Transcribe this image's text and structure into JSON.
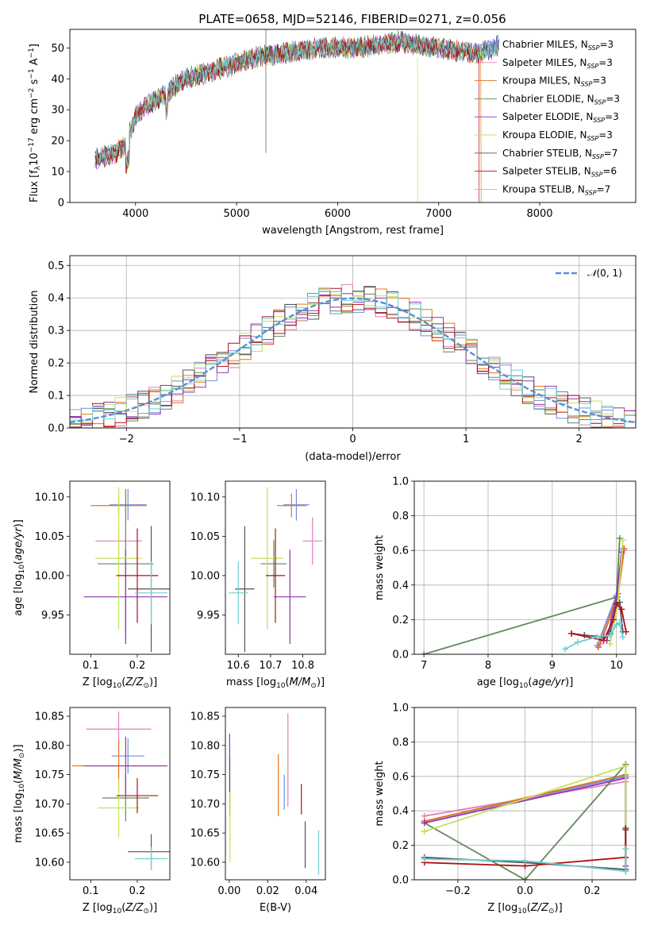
{
  "title": "PLATE=0658, MJD=52146, FIBERID=0271, z=0.056",
  "colors": {
    "Chabrier MILES": "#6f8fd8",
    "Salpeter MILES": "#e37dbd",
    "Kroupa MILES": "#e8731c",
    "Chabrier ELODIE": "#5f8a5a",
    "Salpeter ELODIE": "#8e36ae",
    "Kroupa ELODIE": "#c4e25a",
    "Chabrier STELIB": "#555555",
    "Salpeter STELIB": "#b01015",
    "Kroupa STELIB": "#6fcfd2"
  },
  "chart_data": [
    {
      "type": "line",
      "panel": "spectrum",
      "xlabel": "wavelength [Angstrom, rest frame]",
      "ylabel": "Flux [f_λ 10^-17 erg cm^-2 s^-1 A^-1]",
      "xlim": [
        3350,
        8950
      ],
      "ylim": [
        0,
        56
      ],
      "xticks": [
        4000,
        5000,
        6000,
        7000,
        8000
      ],
      "yticks": [
        0,
        10,
        20,
        30,
        40,
        50
      ],
      "legend": "right",
      "legend_entries": [
        "Chabrier MILES, N_SSP=3",
        "Salpeter MILES, N_SSP=3",
        "Kroupa MILES, N_SSP=3",
        "Chabrier ELODIE, N_SSP=3",
        "Salpeter ELODIE, N_SSP=3",
        "Kroupa ELODIE, N_SSP=3",
        "Chabrier STELIB, N_SSP=7",
        "Salpeter STELIB, N_SSP=6",
        "Kroupa STELIB, N_SSP=7"
      ],
      "continuum": {
        "x": [
          3600,
          3700,
          3800,
          3900,
          4000,
          4100,
          4200,
          4300,
          4400,
          4500,
          4600,
          4800,
          5000,
          5200,
          5400,
          5600,
          5800,
          6000,
          6200,
          6400,
          6600,
          6800,
          7000,
          7200,
          7400,
          7600,
          7800
        ],
        "y": [
          14,
          15,
          16,
          19,
          28,
          31,
          33,
          35,
          38,
          40,
          41,
          43,
          45,
          47,
          48,
          49,
          50,
          50,
          50,
          51,
          52,
          51,
          50,
          49,
          48,
          51,
          52
        ]
      }
    },
    {
      "type": "bar",
      "panel": "residual-histogram",
      "xlabel": "(data-model)/error",
      "ylabel": "Normed distribution",
      "xlim": [
        -2.5,
        2.5
      ],
      "ylim": [
        0,
        0.53
      ],
      "xticks": [
        -2,
        -1,
        0,
        1,
        2
      ],
      "yticks": [
        0.0,
        0.1,
        0.2,
        0.3,
        0.4,
        0.5
      ],
      "grid": true,
      "legend": "top-right",
      "reference_series": "N(0,1)",
      "bin_width": 0.1
    },
    {
      "type": "scatter",
      "panel": "age-vs-Z",
      "xlabel": "Z [log10(Z/Z_sun)]",
      "ylabel": "age [log10(age/yr)]",
      "xlim": [
        0.055,
        0.27
      ],
      "ylim": [
        9.9,
        10.12
      ],
      "xticks": [
        0.1,
        0.2
      ],
      "yticks": [
        9.95,
        10.0,
        10.05,
        10.1
      ],
      "points": [
        {
          "series": "Chabrier MILES",
          "x": 0.18,
          "y": 10.09,
          "xerr": 0.04,
          "yerr": 0.02
        },
        {
          "series": "Salpeter MILES",
          "x": 0.16,
          "y": 10.044,
          "xerr": 0.05,
          "yerr": 0.02
        },
        {
          "series": "Kroupa MILES",
          "x": 0.16,
          "y": 10.089,
          "xerr": 0.06,
          "yerr": 0.015
        },
        {
          "series": "Chabrier ELODIE",
          "x": 0.175,
          "y": 10.015,
          "xerr": 0.06,
          "yerr": 0.095
        },
        {
          "series": "Salpeter ELODIE",
          "x": 0.175,
          "y": 9.973,
          "xerr": 0.09,
          "yerr": 0.06
        },
        {
          "series": "Kroupa ELODIE",
          "x": 0.16,
          "y": 10.022,
          "xerr": 0.05,
          "yerr": 0.09
        },
        {
          "series": "Chabrier STELIB",
          "x": 0.23,
          "y": 9.983,
          "xerr": 0.05,
          "yerr": 0.08
        },
        {
          "series": "Salpeter STELIB",
          "x": 0.2,
          "y": 10.0,
          "xerr": 0.045,
          "yerr": 0.06
        },
        {
          "series": "Kroupa STELIB",
          "x": 0.23,
          "y": 9.978,
          "xerr": 0.035,
          "yerr": 0.04
        }
      ]
    },
    {
      "type": "scatter",
      "panel": "age-vs-mass",
      "xlabel": "mass [log10(M/M_sun)]",
      "ylabel": "",
      "xlim": [
        10.56,
        10.87
      ],
      "ylim": [
        9.9,
        10.12
      ],
      "xticks": [
        10.6,
        10.7,
        10.8
      ],
      "yticks": [
        9.95,
        10.0,
        10.05,
        10.1
      ],
      "points": [
        {
          "series": "Chabrier MILES",
          "x": 10.78,
          "y": 10.09,
          "xerr": 0.04,
          "yerr": 0.02
        },
        {
          "series": "Salpeter MILES",
          "x": 10.83,
          "y": 10.044,
          "xerr": 0.03,
          "yerr": 0.03
        },
        {
          "series": "Kroupa MILES",
          "x": 10.765,
          "y": 10.089,
          "xerr": 0.045,
          "yerr": 0.015
        },
        {
          "series": "Chabrier ELODIE",
          "x": 10.71,
          "y": 10.015,
          "xerr": 0.04,
          "yerr": 0.03
        },
        {
          "series": "Salpeter ELODIE",
          "x": 10.76,
          "y": 9.973,
          "xerr": 0.05,
          "yerr": 0.06
        },
        {
          "series": "Kroupa ELODIE",
          "x": 10.69,
          "y": 10.022,
          "xerr": 0.05,
          "yerr": 0.09
        },
        {
          "series": "Chabrier STELIB",
          "x": 10.62,
          "y": 9.983,
          "xerr": 0.03,
          "yerr": 0.08
        },
        {
          "series": "Salpeter STELIB",
          "x": 10.715,
          "y": 10.0,
          "xerr": 0.03,
          "yerr": 0.06
        },
        {
          "series": "Kroupa STELIB",
          "x": 10.6,
          "y": 9.978,
          "xerr": 0.03,
          "yerr": 0.04
        }
      ]
    },
    {
      "type": "line",
      "panel": "mass-weight-vs-age",
      "xlabel": "age [log10(age/yr)]",
      "ylabel": "mass weight",
      "xlim": [
        6.85,
        10.3
      ],
      "ylim": [
        0,
        1
      ],
      "xticks": [
        7,
        8,
        9,
        10
      ],
      "yticks": [
        0.0,
        0.2,
        0.4,
        0.6,
        0.8,
        1.0
      ],
      "grid": true,
      "series": [
        {
          "name": "Chabrier MILES",
          "x": [
            9.7,
            10.0,
            10.1
          ],
          "y": [
            0.05,
            0.34,
            0.61
          ]
        },
        {
          "name": "Salpeter MILES",
          "x": [
            9.75,
            10.02,
            10.12
          ],
          "y": [
            0.06,
            0.33,
            0.6
          ]
        },
        {
          "name": "Kroupa MILES",
          "x": [
            9.72,
            10.03,
            10.12
          ],
          "y": [
            0.04,
            0.35,
            0.61
          ]
        },
        {
          "name": "Chabrier ELODIE",
          "x": [
            7.0,
            10.0,
            10.05
          ],
          "y": [
            0.0,
            0.33,
            0.67
          ]
        },
        {
          "name": "Salpeter ELODIE",
          "x": [
            9.85,
            10.0,
            10.08
          ],
          "y": [
            0.08,
            0.33,
            0.59
          ]
        },
        {
          "name": "Kroupa ELODIE",
          "x": [
            9.9,
            10.02,
            10.1
          ],
          "y": [
            0.06,
            0.28,
            0.66
          ]
        },
        {
          "name": "Chabrier STELIB",
          "x": [
            9.3,
            9.5,
            9.8,
            9.9,
            10.0,
            10.05,
            10.1
          ],
          "y": [
            0.12,
            0.11,
            0.1,
            0.12,
            0.29,
            0.3,
            0.13
          ]
        },
        {
          "name": "Salpeter STELIB",
          "x": [
            9.3,
            9.8,
            9.95,
            10.0,
            10.08,
            10.15
          ],
          "y": [
            0.12,
            0.08,
            0.2,
            0.29,
            0.26,
            0.13
          ]
        },
        {
          "name": "Kroupa STELIB",
          "x": [
            9.2,
            9.4,
            9.7,
            9.9,
            10.0,
            10.05,
            10.1
          ],
          "y": [
            0.03,
            0.07,
            0.1,
            0.11,
            0.17,
            0.18,
            0.1
          ]
        }
      ]
    },
    {
      "type": "scatter",
      "panel": "mass-vs-Z",
      "xlabel": "Z [log10(Z/Z_sun)]",
      "ylabel": "mass [log10(M/M_sun)]",
      "xlim": [
        0.055,
        0.27
      ],
      "ylim": [
        10.57,
        10.865
      ],
      "xticks": [
        0.1,
        0.2
      ],
      "yticks": [
        10.6,
        10.65,
        10.7,
        10.75,
        10.8,
        10.85
      ],
      "points": [
        {
          "series": "Chabrier MILES",
          "x": 0.18,
          "y": 10.782,
          "xerr": 0.035,
          "yerr": 0.03
        },
        {
          "series": "Salpeter MILES",
          "x": 0.16,
          "y": 10.828,
          "xerr": 0.07,
          "yerr": 0.03
        },
        {
          "series": "Kroupa MILES",
          "x": 0.16,
          "y": 10.765,
          "xerr": 0.1,
          "yerr": 0.045
        },
        {
          "series": "Chabrier ELODIE",
          "x": 0.175,
          "y": 10.71,
          "xerr": 0.05,
          "yerr": 0.04
        },
        {
          "series": "Salpeter ELODIE",
          "x": 0.175,
          "y": 10.765,
          "xerr": 0.09,
          "yerr": 0.05
        },
        {
          "series": "Kroupa ELODIE",
          "x": 0.16,
          "y": 10.693,
          "xerr": 0.045,
          "yerr": 0.05
        },
        {
          "series": "Chabrier STELIB",
          "x": 0.23,
          "y": 10.618,
          "xerr": 0.05,
          "yerr": 0.03
        },
        {
          "series": "Salpeter STELIB",
          "x": 0.2,
          "y": 10.714,
          "xerr": 0.045,
          "yerr": 0.03
        },
        {
          "series": "Kroupa STELIB",
          "x": 0.23,
          "y": 10.606,
          "xerr": 0.035,
          "yerr": 0.02
        }
      ]
    },
    {
      "type": "scatter",
      "panel": "mass-vs-ebv",
      "xlabel": "E(B-V)",
      "ylabel": "",
      "xlim": [
        -0.002,
        0.05
      ],
      "ylim": [
        10.57,
        10.865
      ],
      "xticks": [
        0.0,
        0.02,
        0.04
      ],
      "yticks": [
        10.6,
        10.65,
        10.7,
        10.75,
        10.8,
        10.85
      ],
      "points": [
        {
          "series": "Chabrier MILES",
          "x": 0.0286,
          "y": 10.72,
          "yerr": 0.03
        },
        {
          "series": "Salpeter MILES",
          "x": 0.0305,
          "y": 10.775,
          "yerr": 0.08
        },
        {
          "series": "Kroupa MILES",
          "x": 0.0255,
          "y": 10.732,
          "yerr": 0.053
        },
        {
          "series": "Chabrier ELODIE",
          "x": 0.0003,
          "y": 10.73,
          "yerr": 0.05
        },
        {
          "series": "Salpeter ELODIE",
          "x": 0.0002,
          "y": 10.77,
          "yerr": 0.05
        },
        {
          "series": "Kroupa ELODIE",
          "x": 0.0004,
          "y": 10.66,
          "yerr": 0.06
        },
        {
          "series": "Chabrier STELIB",
          "x": 0.0395,
          "y": 10.63,
          "yerr": 0.04
        },
        {
          "series": "Salpeter STELIB",
          "x": 0.0375,
          "y": 10.708,
          "yerr": 0.026
        },
        {
          "series": "Kroupa STELIB",
          "x": 0.0465,
          "y": 10.617,
          "yerr": 0.038
        }
      ]
    },
    {
      "type": "line",
      "panel": "mass-weight-vs-Z",
      "xlabel": "Z [log10(Z/Z_sun)]",
      "ylabel": "mass weight",
      "xlim": [
        -0.33,
        0.33
      ],
      "ylim": [
        0,
        1
      ],
      "xticks": [
        -0.2,
        0.0,
        0.2
      ],
      "yticks": [
        0.0,
        0.2,
        0.4,
        0.6,
        0.8,
        1.0
      ],
      "grid": true,
      "series": [
        {
          "name": "Chabrier MILES",
          "x": [
            -0.3,
            0.3,
            0.3
          ],
          "y": [
            0.34,
            0.6,
            0.05
          ]
        },
        {
          "name": "Salpeter MILES",
          "x": [
            -0.3,
            0.3,
            0.3
          ],
          "y": [
            0.37,
            0.57,
            0.06
          ]
        },
        {
          "name": "Kroupa MILES",
          "x": [
            -0.3,
            0.3,
            0.3
          ],
          "y": [
            0.34,
            0.61,
            0.05
          ]
        },
        {
          "name": "Chabrier ELODIE",
          "x": [
            -0.3,
            0.0,
            0.3,
            0.3
          ],
          "y": [
            0.33,
            0.0,
            0.67,
            0.05
          ]
        },
        {
          "name": "Salpeter ELODIE",
          "x": [
            -0.3,
            0.3,
            0.3
          ],
          "y": [
            0.33,
            0.59,
            0.08
          ]
        },
        {
          "name": "Kroupa ELODIE",
          "x": [
            -0.3,
            0.3,
            0.3
          ],
          "y": [
            0.28,
            0.66,
            0.06
          ]
        },
        {
          "name": "Chabrier STELIB",
          "x": [
            -0.3,
            0.0,
            0.3,
            0.3
          ],
          "y": [
            0.13,
            0.1,
            0.06,
            0.3
          ]
        },
        {
          "name": "Salpeter STELIB",
          "x": [
            -0.3,
            0.0,
            0.3,
            0.3
          ],
          "y": [
            0.1,
            0.08,
            0.13,
            0.29
          ]
        },
        {
          "name": "Kroupa STELIB",
          "x": [
            -0.3,
            0.0,
            0.3,
            0.3
          ],
          "y": [
            0.12,
            0.11,
            0.05,
            0.18
          ]
        }
      ]
    }
  ]
}
